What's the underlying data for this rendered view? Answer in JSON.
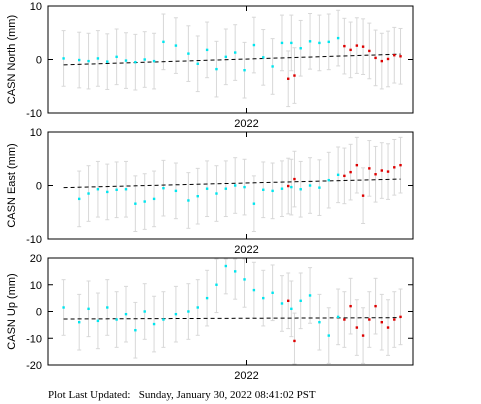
{
  "colors": {
    "marker_cyan": "#00e5ee",
    "marker_red": "#dd0000",
    "errbar": "#d8d8d8",
    "trend": "#000000"
  },
  "footer": {
    "text": "Plot Last Updated:   Sunday, January 30, 2022 08:41:02 PST"
  },
  "chart_data": [
    {
      "type": "scatter",
      "ylabel": "CASN North (mm)",
      "ylim": [
        -10,
        10
      ],
      "yticks": [
        -10,
        0,
        10
      ],
      "xtick_label": "2022",
      "series": [
        {
          "color": "cyan",
          "x": [
            0.0,
            0.05,
            0.08,
            0.11,
            0.14,
            0.17,
            0.2,
            0.23,
            0.26,
            0.29,
            0.32,
            0.36,
            0.4,
            0.43,
            0.46,
            0.49,
            0.52,
            0.55,
            0.58,
            0.61,
            0.64,
            0.67,
            0.7,
            0.73,
            0.76,
            0.79,
            0.82,
            0.85,
            0.88
          ],
          "y": [
            0.2,
            -0.1,
            -0.3,
            0.2,
            -0.4,
            0.5,
            -0.2,
            -0.5,
            0,
            -0.3,
            3.3,
            2.6,
            1.1,
            -0.8,
            1.8,
            -1.8,
            0.5,
            1.3,
            -2,
            2.7,
            0.4,
            -1.3,
            3.1,
            3.1,
            2.1,
            3.4,
            3.1,
            3.3,
            4
          ]
        },
        {
          "color": "red",
          "x": [
            0.72,
            0.74,
            0.9,
            0.92,
            0.94,
            0.96,
            0.98,
            1.0,
            1.02,
            1.04,
            1.06,
            1.08
          ],
          "y": [
            -3.6,
            -3,
            2.5,
            1.8,
            2.6,
            2.4,
            1.6,
            0.3,
            -0.3,
            0.1,
            0.8,
            0.6
          ]
        }
      ],
      "trend": {
        "y_start": -1,
        "y_end": 1
      }
    },
    {
      "type": "scatter",
      "ylabel": "CASN East (mm)",
      "ylim": [
        -10,
        10
      ],
      "yticks": [
        -10,
        0,
        10
      ],
      "xtick_label": "2022",
      "series": [
        {
          "color": "cyan",
          "x": [
            0.05,
            0.08,
            0.11,
            0.14,
            0.17,
            0.2,
            0.23,
            0.26,
            0.29,
            0.32,
            0.36,
            0.4,
            0.43,
            0.46,
            0.49,
            0.52,
            0.55,
            0.58,
            0.61,
            0.64,
            0.67,
            0.7,
            0.73,
            0.76,
            0.79,
            0.82,
            0.85,
            0.88
          ],
          "y": [
            -2.5,
            -1.5,
            -0.7,
            -1.2,
            -0.8,
            -0.7,
            -3.4,
            -3,
            -2.5,
            -0.5,
            -1,
            -2.8,
            -2,
            -0.6,
            -1.5,
            -0.6,
            0,
            -0.3,
            -3.4,
            -0.8,
            -1,
            -0.6,
            -0.3,
            -0.7,
            0,
            -0.4,
            1,
            2
          ]
        },
        {
          "color": "red",
          "x": [
            0.72,
            0.74,
            0.9,
            0.92,
            0.94,
            0.96,
            0.98,
            1.0,
            1.02,
            1.04,
            1.06,
            1.08
          ],
          "y": [
            -0.1,
            1.2,
            1.8,
            2.5,
            3.8,
            -1.9,
            3.2,
            2.1,
            2.8,
            2.6,
            3.4,
            3.8
          ]
        }
      ],
      "trend": {
        "y_start": -0.4,
        "y_end": 1.2
      }
    },
    {
      "type": "scatter",
      "ylabel": "CASN Up (mm)",
      "ylim": [
        -20,
        20
      ],
      "yticks": [
        -20,
        -10,
        0,
        10,
        20
      ],
      "xtick_label": "2022",
      "series": [
        {
          "color": "cyan",
          "x": [
            0.0,
            0.05,
            0.08,
            0.11,
            0.14,
            0.17,
            0.2,
            0.23,
            0.26,
            0.29,
            0.32,
            0.36,
            0.4,
            0.43,
            0.46,
            0.49,
            0.52,
            0.55,
            0.58,
            0.61,
            0.64,
            0.67,
            0.7,
            0.73,
            0.76,
            0.79,
            0.82,
            0.85,
            0.88
          ],
          "y": [
            1.5,
            -4,
            1,
            -3.5,
            1.5,
            -3,
            -1,
            -7,
            0,
            -4.7,
            -3,
            -1,
            0,
            1.5,
            5,
            10,
            17,
            15,
            12,
            8,
            5,
            7,
            3,
            1,
            4,
            6,
            -4,
            -9,
            -2
          ]
        },
        {
          "color": "red",
          "x": [
            0.72,
            0.74,
            0.9,
            0.92,
            0.94,
            0.96,
            0.98,
            1.0,
            1.02,
            1.04,
            1.06,
            1.08
          ],
          "y": [
            4,
            -11,
            -3,
            2,
            -6,
            -9,
            -3,
            2,
            -4,
            -6,
            -3,
            -2
          ]
        }
      ],
      "trend": {
        "y_start": -2.8,
        "y_end": -2.3
      }
    }
  ]
}
